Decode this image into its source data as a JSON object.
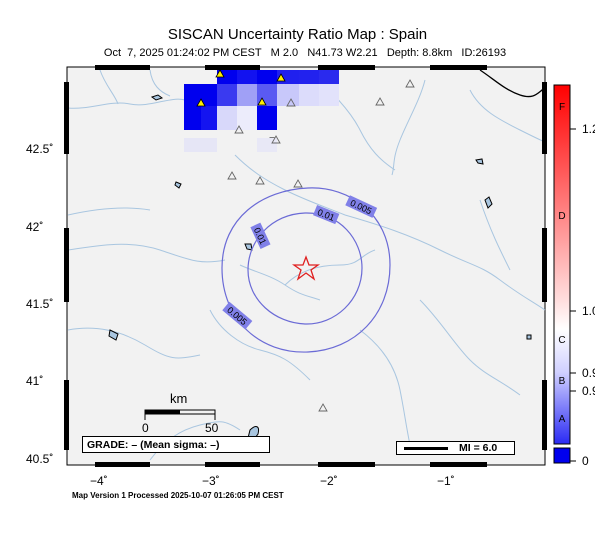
{
  "title": "SISCAN Uncertainty Ratio Map : Spain",
  "subtitle": {
    "date": "Oct  7, 2025 01:24:02 PM CEST",
    "magnitude": "M 2.0",
    "location": "N41.73 W2.21",
    "depth": "Depth: 8.8km",
    "id": "ID:26193"
  },
  "footer": "Map Version 1 Processed 2025-10-07 01:26:05 PM CEST",
  "axes": {
    "y_ticks": [
      "42.5˚",
      "42˚",
      "41.5˚",
      "41˚",
      "40.5˚"
    ],
    "x_ticks": [
      "−4˚",
      "−3˚",
      "−2˚",
      "−1˚"
    ]
  },
  "scale_bar": {
    "unit": "km",
    "start": "0",
    "end": "50"
  },
  "grade_box": "GRADE: – (Mean sigma: –)",
  "mi_legend": "MI = 6.0",
  "colorbar": {
    "tick_labels": [
      "1.2",
      "1.0",
      "0.9",
      "0.9",
      "0"
    ],
    "grade_letters": [
      "F",
      "D",
      "C",
      "B",
      "A"
    ],
    "colors": {
      "top": "#ff0000",
      "mid": "#ffffff",
      "bottom": "#0000ff"
    }
  },
  "contours": [
    {
      "label": "0.005"
    },
    {
      "label": "0.01"
    },
    {
      "label": "0.01"
    },
    {
      "label": "0.005"
    }
  ],
  "epicenter": {
    "icon": "star-icon",
    "color": "#e02020"
  },
  "colors": {
    "land": "#f2f2f2",
    "rivers": "#a9c6e0",
    "contour": "#6b6bd6",
    "contour_label_bg": "#8080e8",
    "cell_deep": "#0000ee",
    "station_fill": "#ffee00"
  }
}
